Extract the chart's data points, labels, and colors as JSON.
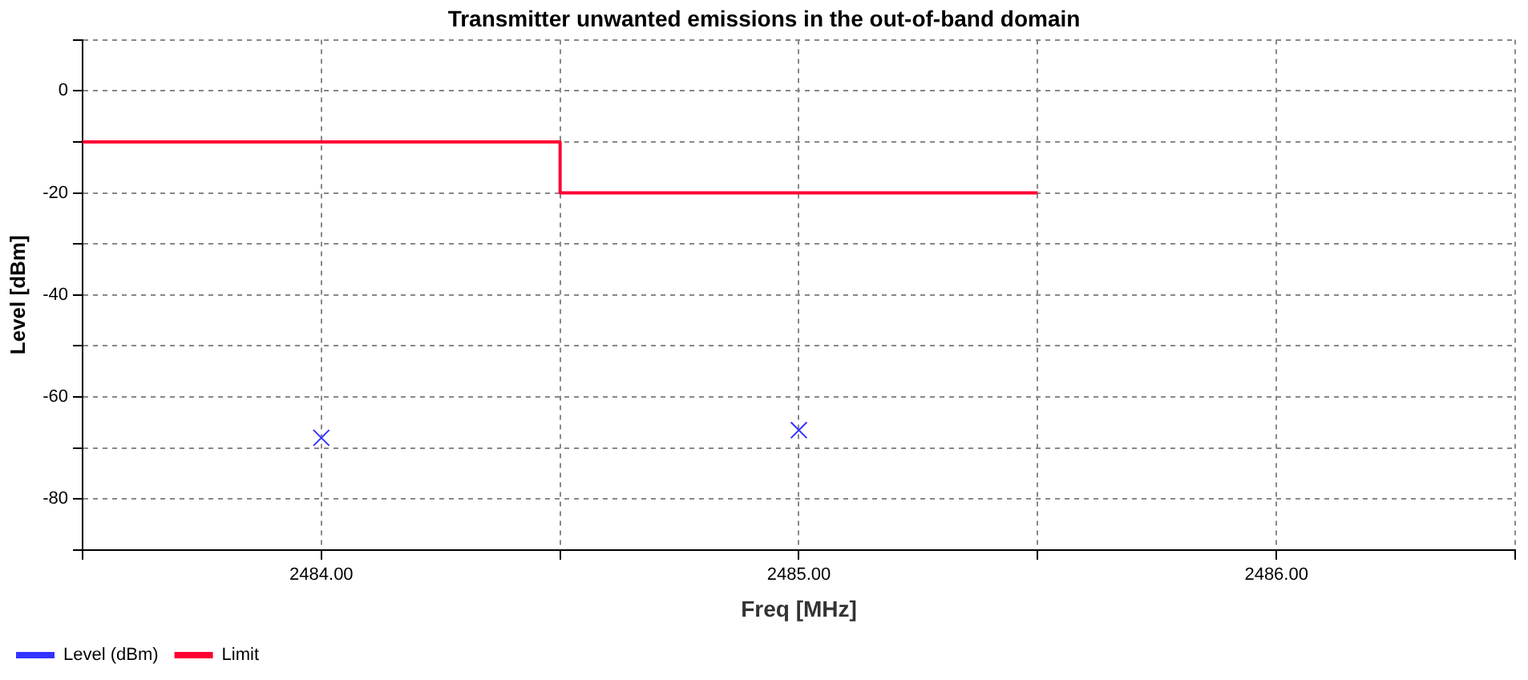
{
  "chart_data": {
    "type": "scatter",
    "title": "Transmitter unwanted emissions in the out-of-band domain",
    "xlabel": "Freq [MHz]",
    "ylabel": "Level [dBm]",
    "series": [
      {
        "name": "Level (dBm)",
        "color": "#3333ff",
        "x": [
          2484,
          2485
        ],
        "values": [
          -68,
          -66.5
        ],
        "marker": "cross"
      },
      {
        "name": "Limit",
        "type": "line",
        "color": "#ff0033",
        "x": [
          2483.5,
          2484.5,
          2484.5,
          2485.5
        ],
        "values": [
          -10,
          -10,
          -20,
          -20
        ],
        "marker": "none",
        "line_style": "solid"
      }
    ],
    "xlim": [
      2483.5,
      2486.5
    ],
    "xticks": [
      {
        "value": 2483.5,
        "label": null
      },
      {
        "value": 2484,
        "label": "2484.00"
      },
      {
        "value": 2484.5,
        "label": null
      },
      {
        "value": 2485,
        "label": "2485.00"
      },
      {
        "value": 2485.5,
        "label": null
      },
      {
        "value": 2486,
        "label": "2486.00"
      },
      {
        "value": 2486.5,
        "label": null
      }
    ],
    "ylim": [
      -90,
      10
    ],
    "yticks": [
      {
        "value": -90,
        "label": null
      },
      -80,
      {
        "value": -70,
        "label": null
      },
      -60,
      {
        "value": -50,
        "label": null
      },
      -40,
      {
        "value": -30,
        "label": null
      },
      -20,
      {
        "value": -10,
        "label": null
      },
      0,
      {
        "value": 10,
        "label": null
      }
    ],
    "grid": true,
    "legend": "bottom left"
  }
}
